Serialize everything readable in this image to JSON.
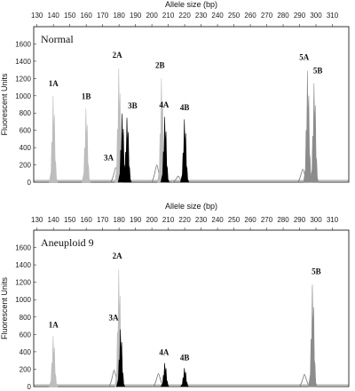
{
  "chart_data": [
    {
      "type": "area",
      "title": "Normal",
      "xlabel": "Allele size (bp)",
      "ylabel": "Fluorescent Units",
      "xlim": [
        128,
        320
      ],
      "ylim": [
        0,
        1800
      ],
      "xticks": [
        "130",
        "140",
        "150",
        "160",
        "170",
        "180",
        "190",
        "200",
        "210",
        "220",
        "230",
        "240",
        "250",
        "260",
        "270",
        "280",
        "290",
        "300",
        "310"
      ],
      "yticks": [
        "0",
        "200",
        "400",
        "600",
        "800",
        "1000",
        "1200",
        "1400",
        "1600"
      ],
      "colors": {
        "light": "#bdbdbd",
        "mid": "#8c8c8c",
        "dark": "#000000"
      },
      "peaks": [
        {
          "label": "1A",
          "x": 140,
          "height": 1030,
          "color": "light"
        },
        {
          "label": "1B",
          "x": 160,
          "height": 880,
          "color": "light"
        },
        {
          "label": "3A",
          "x": 178,
          "height": 170,
          "color": "outline"
        },
        {
          "label": "2A",
          "x": 180,
          "height": 1360,
          "color": "light"
        },
        {
          "label": "",
          "x": 182,
          "height": 820,
          "color": "dark"
        },
        {
          "label": "3B",
          "x": 185,
          "height": 770,
          "color": "dark"
        },
        {
          "label": "",
          "x": 203,
          "height": 200,
          "color": "outline"
        },
        {
          "label": "2B",
          "x": 206,
          "height": 1240,
          "color": "light"
        },
        {
          "label": "4A",
          "x": 208,
          "height": 780,
          "color": "dark"
        },
        {
          "label": "",
          "x": 216,
          "height": 70,
          "color": "outline"
        },
        {
          "label": "4B",
          "x": 220,
          "height": 750,
          "color": "dark"
        },
        {
          "label": "",
          "x": 292,
          "height": 150,
          "color": "outline"
        },
        {
          "label": "5A",
          "x": 295,
          "height": 1330,
          "color": "mid"
        },
        {
          "label": "5B",
          "x": 299,
          "height": 1180,
          "color": "mid"
        }
      ]
    },
    {
      "type": "area",
      "title": "Aneuploid  9",
      "xlabel": "Allele size (bp)",
      "ylabel": "Fluorescent Units",
      "xlim": [
        128,
        320
      ],
      "ylim": [
        0,
        1800
      ],
      "xticks": [
        "130",
        "140",
        "150",
        "160",
        "170",
        "180",
        "190",
        "200",
        "210",
        "220",
        "230",
        "240",
        "250",
        "260",
        "270",
        "280",
        "290",
        "300",
        "310"
      ],
      "yticks": [
        "0",
        "200",
        "400",
        "600",
        "800",
        "1000",
        "1200",
        "1400",
        "1600"
      ],
      "colors": {
        "light": "#bdbdbd",
        "mid": "#8c8c8c",
        "dark": "#000000"
      },
      "peaks": [
        {
          "label": "1A",
          "x": 140,
          "height": 600,
          "color": "light"
        },
        {
          "label": "",
          "x": 177,
          "height": 190,
          "color": "outline"
        },
        {
          "label": "2A",
          "x": 180,
          "height": 1390,
          "color": "light"
        },
        {
          "label": "3A",
          "x": 181,
          "height": 680,
          "color": "dark"
        },
        {
          "label": "",
          "x": 204,
          "height": 150,
          "color": "outline"
        },
        {
          "label": "4A",
          "x": 208,
          "height": 280,
          "color": "dark"
        },
        {
          "label": "4B",
          "x": 220,
          "height": 220,
          "color": "dark"
        },
        {
          "label": "",
          "x": 293,
          "height": 140,
          "color": "outline"
        },
        {
          "label": "5B",
          "x": 298,
          "height": 1210,
          "color": "mid"
        }
      ]
    }
  ]
}
